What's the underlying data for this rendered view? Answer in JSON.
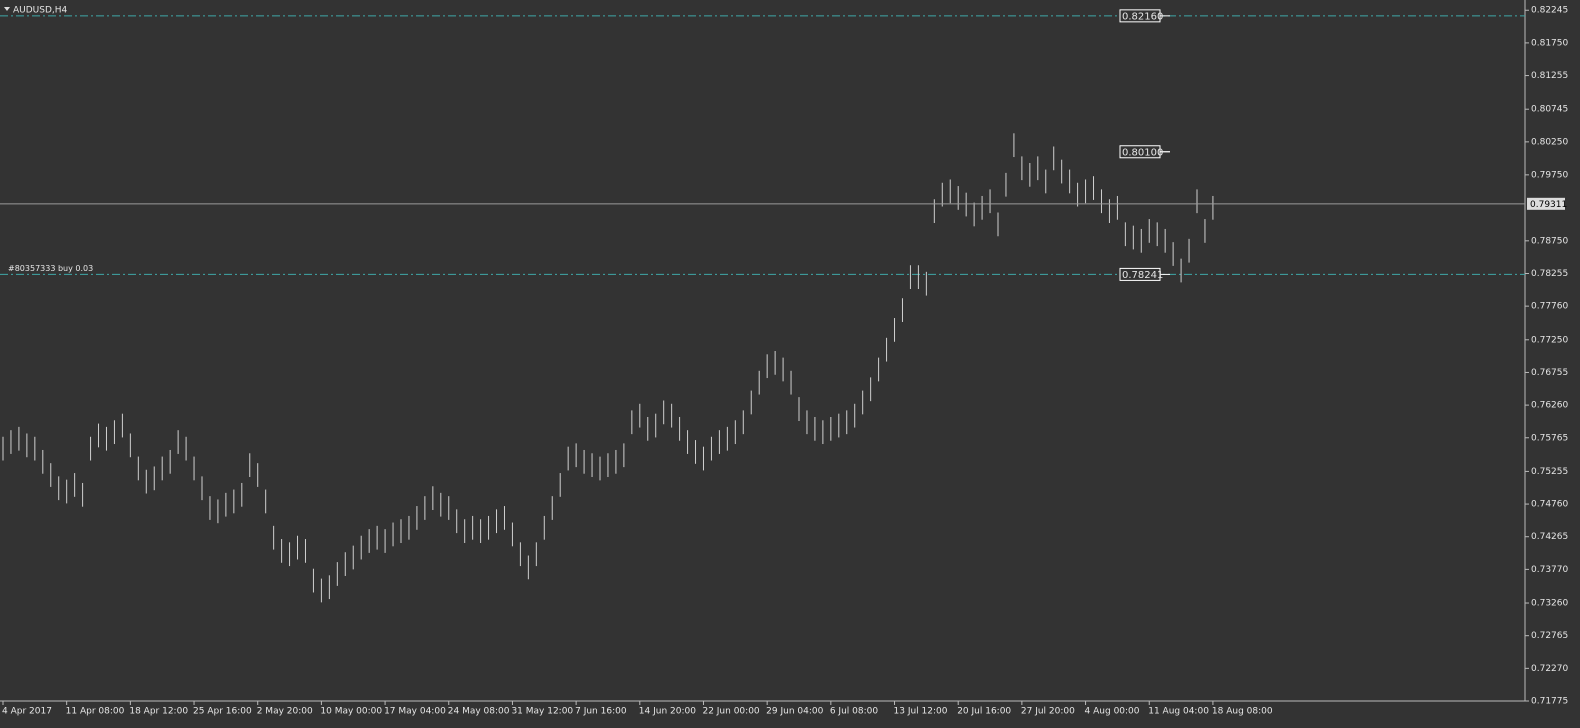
{
  "chart_data": {
    "type": "range_bar",
    "title": "AUDUSD,H4",
    "color": "#cfcfcf",
    "categories": [
      "4 Apr 2017",
      null,
      null,
      null,
      null,
      null,
      null,
      null,
      "11 Apr 08:00",
      null,
      null,
      null,
      null,
      null,
      null,
      null,
      "18 Apr 12:00",
      null,
      null,
      null,
      null,
      null,
      null,
      null,
      "25 Apr 16:00",
      null,
      null,
      null,
      null,
      null,
      null,
      null,
      "2 May 20:00",
      null,
      null,
      null,
      null,
      null,
      null,
      null,
      "10 May 00:00",
      null,
      null,
      null,
      null,
      null,
      null,
      null,
      "17 May 04:00",
      null,
      null,
      null,
      null,
      null,
      null,
      null,
      "24 May 08:00",
      null,
      null,
      null,
      null,
      null,
      null,
      null,
      "31 May 12:00",
      null,
      null,
      null,
      null,
      null,
      null,
      null,
      "7 Jun 16:00",
      null,
      null,
      null,
      null,
      null,
      null,
      null,
      "14 Jun 20:00",
      null,
      null,
      null,
      null,
      null,
      null,
      null,
      "22 Jun 00:00",
      null,
      null,
      null,
      null,
      null,
      null,
      null,
      "29 Jun 04:00",
      null,
      null,
      null,
      null,
      null,
      null,
      null,
      "6 Jul 08:00",
      null,
      null,
      null,
      null,
      null,
      null,
      null,
      "13 Jul 12:00",
      null,
      null,
      null,
      null,
      null,
      null,
      null,
      "20 Jul 16:00",
      null,
      null,
      null,
      null,
      null,
      null,
      null,
      "27 Jul 20:00",
      null,
      null,
      null,
      null,
      null,
      null,
      null,
      "4 Aug 00:00",
      null,
      null,
      null,
      null,
      null,
      null,
      null,
      "11 Aug 04:00",
      null,
      null,
      null,
      null,
      null,
      null,
      null,
      "18 Aug 08:00"
    ],
    "high": [
      0.7578,
      0.7588,
      0.7593,
      0.7583,
      0.7578,
      0.7558,
      0.7538,
      0.7518,
      0.7513,
      0.7523,
      0.7508,
      0.7578,
      0.7598,
      0.7593,
      0.7603,
      0.7613,
      0.7583,
      0.7548,
      0.7528,
      0.7533,
      0.7548,
      0.7558,
      0.7588,
      0.7578,
      0.7548,
      0.7518,
      0.7488,
      0.7483,
      0.7493,
      0.7498,
      0.7508,
      0.7553,
      0.7538,
      0.7498,
      0.7443,
      0.7423,
      0.7418,
      0.7428,
      0.7423,
      0.7378,
      0.7363,
      0.7368,
      0.7388,
      0.7403,
      0.7413,
      0.7428,
      0.7438,
      0.7443,
      0.7438,
      0.7448,
      0.7453,
      0.7458,
      0.7473,
      0.7488,
      0.7503,
      0.7493,
      0.7488,
      0.7468,
      0.7453,
      0.7458,
      0.7453,
      0.7458,
      0.7468,
      0.7473,
      0.7448,
      0.7418,
      0.7398,
      0.7418,
      0.7458,
      0.7488,
      0.7523,
      0.7563,
      0.7568,
      0.7558,
      0.7553,
      0.7548,
      0.7553,
      0.7558,
      0.7568,
      0.7618,
      0.7628,
      0.7608,
      0.7613,
      0.7633,
      0.7628,
      0.7608,
      0.7588,
      0.7573,
      0.7563,
      0.7578,
      0.7588,
      0.7593,
      0.7603,
      0.7618,
      0.7648,
      0.7678,
      0.7703,
      0.7708,
      0.7698,
      0.7678,
      0.7638,
      0.7618,
      0.7608,
      0.7603,
      0.7608,
      0.7613,
      0.7618,
      0.7628,
      0.7648,
      0.7668,
      0.7698,
      0.7728,
      0.7758,
      0.7788,
      0.7838,
      0.7838,
      0.7828,
      0.7938,
      0.7963,
      0.7968,
      0.7958,
      0.7948,
      0.7933,
      0.7943,
      0.7953,
      0.7918,
      0.7978,
      0.8038,
      0.8003,
      0.7993,
      0.8003,
      0.7983,
      0.8018,
      0.7998,
      0.7983,
      0.7963,
      0.7968,
      0.7973,
      0.7953,
      0.7938,
      0.7943,
      0.7903,
      0.7898,
      0.7893,
      0.7908,
      0.7903,
      0.7893,
      0.7873,
      0.7848,
      0.7878,
      0.7953,
      0.7908,
      0.7943
    ],
    "low": [
      0.7542,
      0.7552,
      0.7557,
      0.7547,
      0.7542,
      0.7522,
      0.7502,
      0.7482,
      0.7477,
      0.7487,
      0.7472,
      0.7542,
      0.7562,
      0.7557,
      0.7567,
      0.7577,
      0.7547,
      0.7512,
      0.7492,
      0.7497,
      0.7512,
      0.7522,
      0.7552,
      0.7542,
      0.7512,
      0.7482,
      0.7452,
      0.7447,
      0.7457,
      0.7462,
      0.7472,
      0.7517,
      0.7502,
      0.7462,
      0.7407,
      0.7387,
      0.7382,
      0.7392,
      0.7387,
      0.7342,
      0.7327,
      0.7332,
      0.7352,
      0.7367,
      0.7377,
      0.7392,
      0.7402,
      0.7407,
      0.7402,
      0.7412,
      0.7417,
      0.7422,
      0.7437,
      0.7452,
      0.7467,
      0.7457,
      0.7452,
      0.7432,
      0.7417,
      0.7422,
      0.7417,
      0.7422,
      0.7432,
      0.7437,
      0.7412,
      0.7382,
      0.7362,
      0.7382,
      0.7422,
      0.7452,
      0.7487,
      0.7527,
      0.7532,
      0.7522,
      0.7517,
      0.7512,
      0.7517,
      0.7522,
      0.7532,
      0.7582,
      0.7592,
      0.7572,
      0.7577,
      0.7597,
      0.7592,
      0.7572,
      0.7552,
      0.7537,
      0.7527,
      0.7542,
      0.7552,
      0.7557,
      0.7567,
      0.7582,
      0.7612,
      0.7642,
      0.7667,
      0.7672,
      0.7662,
      0.7642,
      0.7602,
      0.7582,
      0.7572,
      0.7567,
      0.7572,
      0.7577,
      0.7582,
      0.7592,
      0.7612,
      0.7632,
      0.7662,
      0.7692,
      0.7722,
      0.7752,
      0.7802,
      0.7802,
      0.7792,
      0.7902,
      0.7927,
      0.7932,
      0.7922,
      0.7912,
      0.7897,
      0.7907,
      0.7917,
      0.7882,
      0.7942,
      0.8002,
      0.7967,
      0.7957,
      0.7967,
      0.7947,
      0.7982,
      0.7962,
      0.7947,
      0.7927,
      0.7932,
      0.7937,
      0.7917,
      0.7902,
      0.7907,
      0.7867,
      0.7862,
      0.7857,
      0.7872,
      0.7867,
      0.7857,
      0.7837,
      0.7812,
      0.7842,
      0.7917,
      0.7872,
      0.7907
    ],
    "ylim": [
      0.71775,
      0.8237
    ],
    "yticks": [
      0.82245,
      {
        "value": 0.8175,
        "label": "0.81750"
      },
      0.81255,
      0.80745,
      {
        "value": 0.8025,
        "label": "0.80250"
      },
      {
        "value": 0.7975,
        "label": "0.79750"
      },
      {
        "value": 0.7875,
        "label": "0.78750"
      },
      0.78255,
      {
        "value": 0.7776,
        "label": "0.77760"
      },
      {
        "value": 0.7725,
        "label": "0.77250"
      },
      0.76755,
      {
        "value": 0.7626,
        "label": "0.76260"
      },
      0.75765,
      0.75255,
      {
        "value": 0.7476,
        "label": "0.74760"
      },
      0.74265,
      {
        "value": 0.7377,
        "label": "0.73770"
      },
      {
        "value": 0.7326,
        "label": "0.73260"
      },
      0.72765,
      {
        "value": 0.7227,
        "label": "0.72270"
      },
      0.71775
    ],
    "price": {
      "value": 0.79311,
      "label": "0.79311"
    },
    "levels": [
      {
        "value": 0.8216,
        "label": "0.82160",
        "dashdot": true
      },
      {
        "value": 0.801,
        "label": "0.80100",
        "dashdot": false
      },
      {
        "value": 0.78241,
        "label": "0.78241",
        "dashdot": true
      }
    ],
    "order_label": "#80357333 buy 0.03",
    "level_color": "#3fa7a7"
  }
}
